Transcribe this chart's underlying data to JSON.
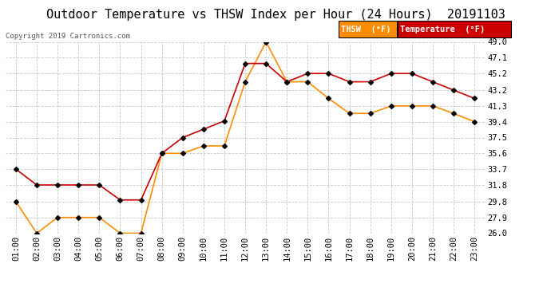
{
  "title": "Outdoor Temperature vs THSW Index per Hour (24 Hours)  20191103",
  "copyright": "Copyright 2019 Cartronics.com",
  "hours": [
    "01:00",
    "02:00",
    "03:00",
    "04:00",
    "05:00",
    "06:00",
    "07:00",
    "08:00",
    "09:00",
    "10:00",
    "11:00",
    "12:00",
    "13:00",
    "14:00",
    "15:00",
    "16:00",
    "17:00",
    "18:00",
    "19:00",
    "20:00",
    "21:00",
    "22:00",
    "23:00"
  ],
  "temperature": [
    33.7,
    31.8,
    31.8,
    31.8,
    31.8,
    30.0,
    30.0,
    35.6,
    37.5,
    38.5,
    39.5,
    46.4,
    46.4,
    44.2,
    45.2,
    45.2,
    44.2,
    44.2,
    45.2,
    45.2,
    44.2,
    43.2,
    42.2
  ],
  "thsw": [
    29.8,
    26.0,
    27.9,
    27.9,
    27.9,
    26.0,
    26.0,
    35.6,
    35.6,
    36.5,
    36.5,
    44.2,
    49.0,
    44.2,
    44.2,
    42.2,
    40.4,
    40.4,
    41.3,
    41.3,
    41.3,
    40.4,
    39.4
  ],
  "temp_color": "#cc0000",
  "thsw_color": "#ff8c00",
  "marker_color": "#000000",
  "ylim_min": 26.0,
  "ylim_max": 49.0,
  "yticks": [
    26.0,
    27.9,
    29.8,
    31.8,
    33.7,
    35.6,
    37.5,
    39.4,
    41.3,
    43.2,
    45.2,
    47.1,
    49.0
  ],
  "background_color": "#ffffff",
  "grid_color": "#c8c8c8",
  "title_fontsize": 11,
  "axis_fontsize": 7.5,
  "legend_thsw_bg": "#ff8c00",
  "legend_temp_bg": "#cc0000",
  "legend_thsw_label": "THSW  (°F)",
  "legend_temp_label": "Temperature  (°F)"
}
